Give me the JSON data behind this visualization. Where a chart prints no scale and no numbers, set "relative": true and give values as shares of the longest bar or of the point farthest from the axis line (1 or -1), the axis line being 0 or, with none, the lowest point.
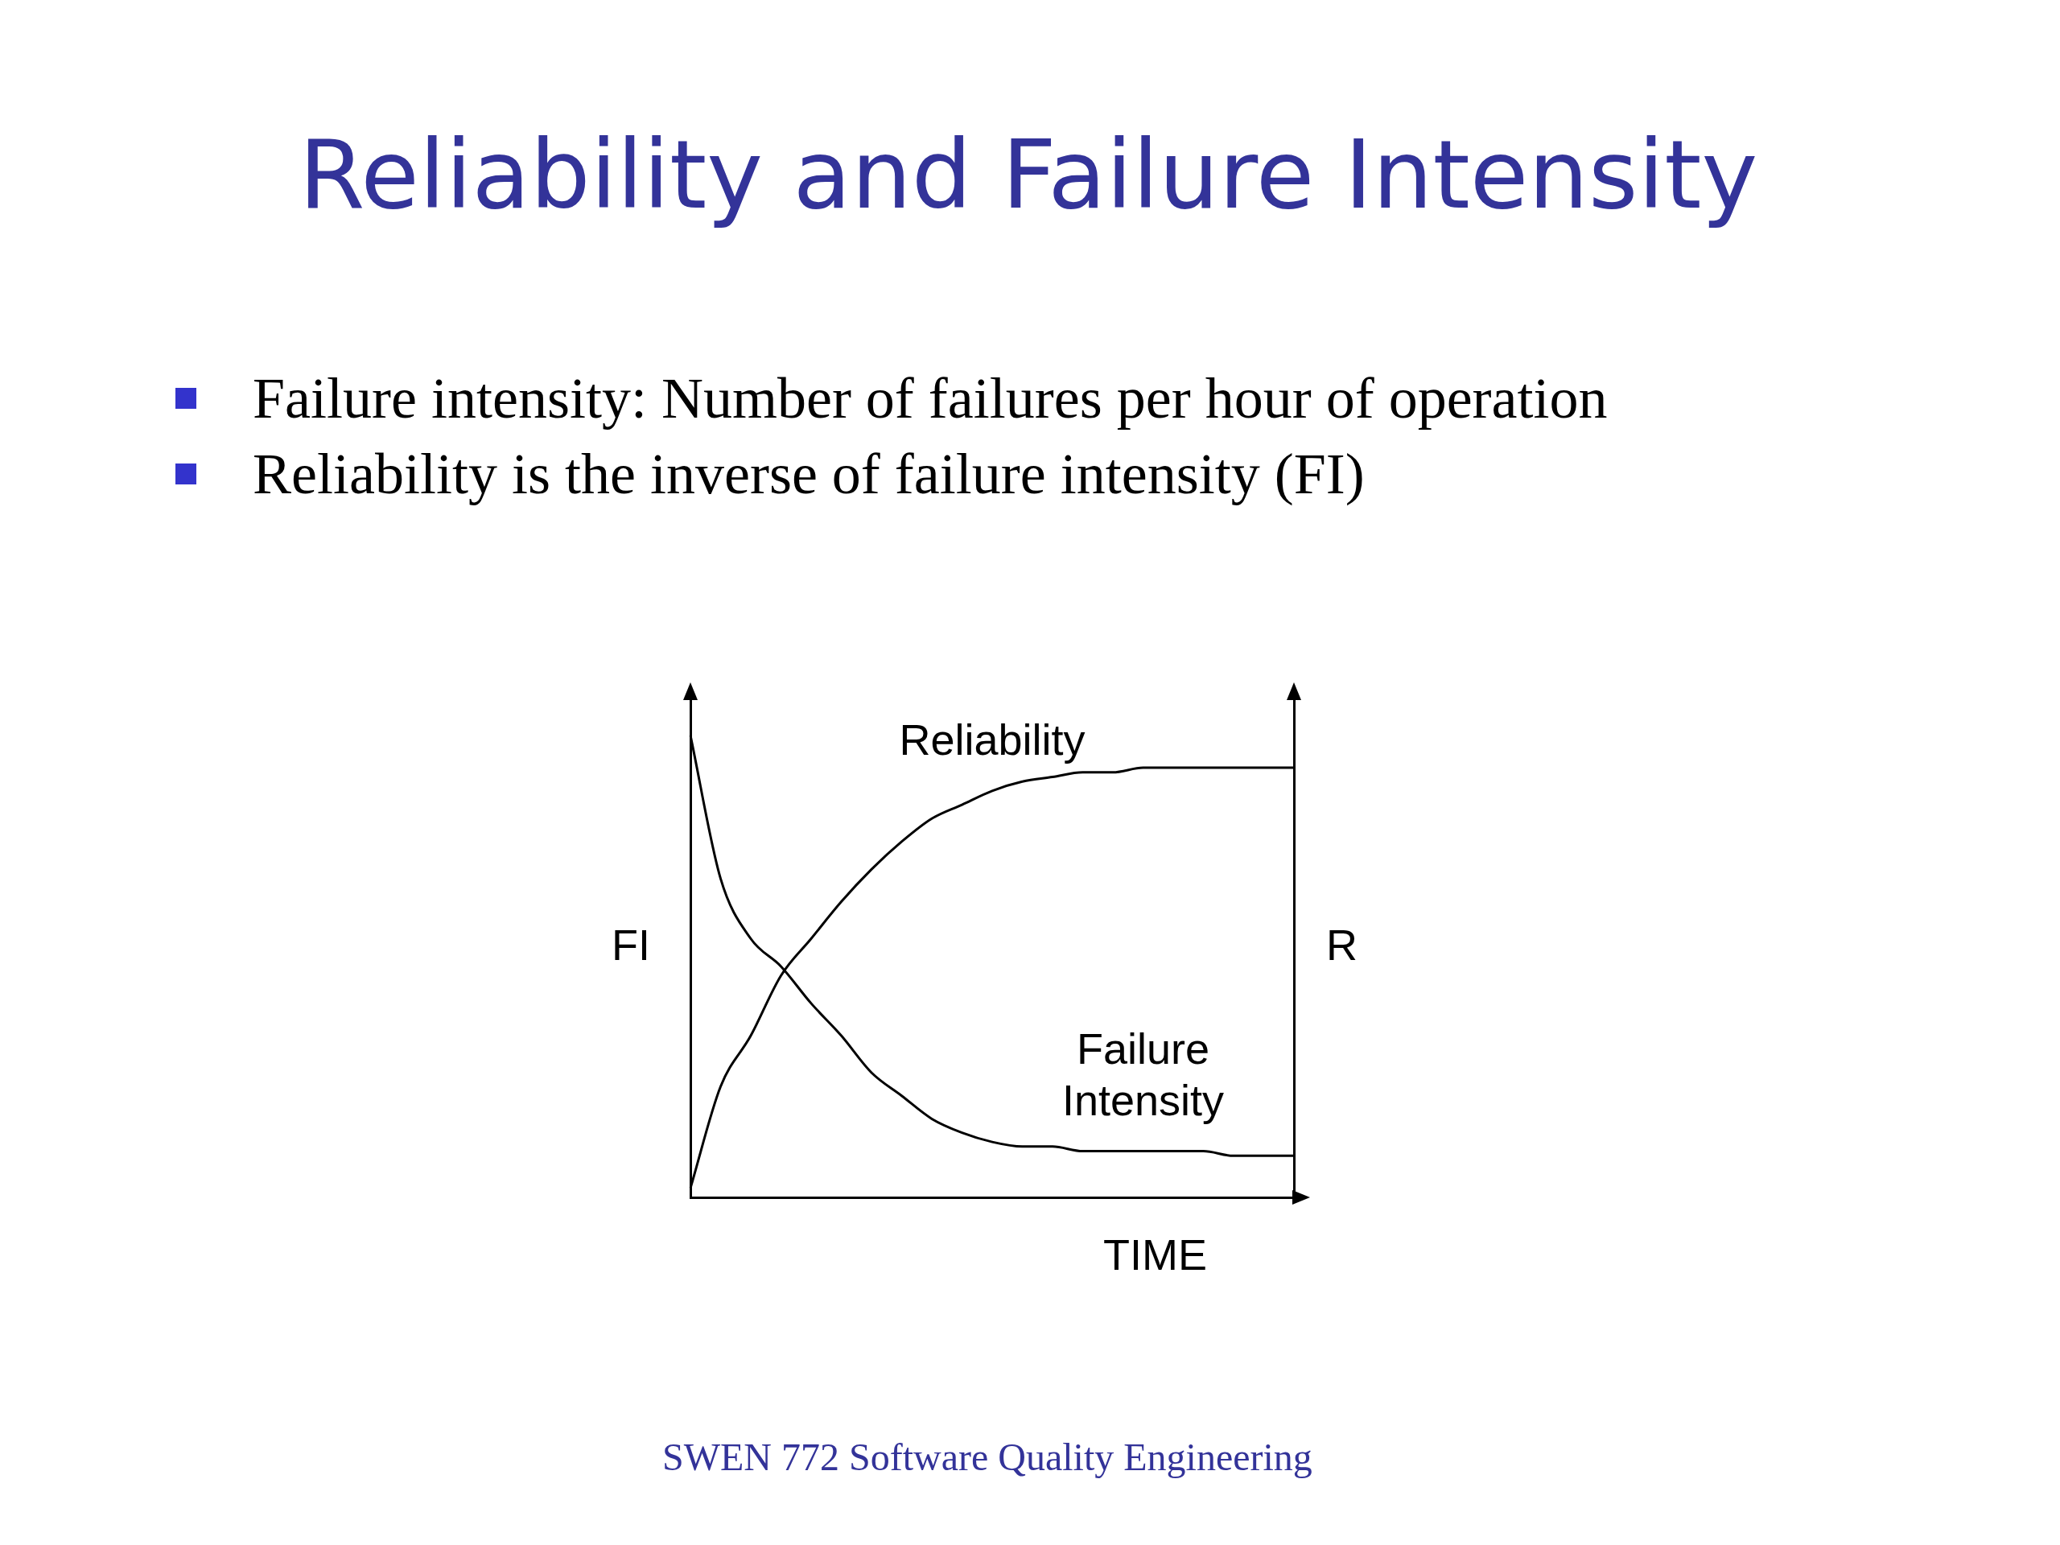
{
  "chart_data": {
    "type": "line",
    "title": "Reliability and Failure Intensity",
    "annotations": [
      "Failure intensity:  Number of failures per hour of operation",
      "Reliability is the inverse of failure intensity (FI)",
      "SWEN 772 Software Quality Engineering"
    ],
    "xlabel": "TIME",
    "ylabel": "FI",
    "y2label": "R",
    "relative": true,
    "legend": false,
    "grid": false,
    "marker": "none",
    "line_style": "solid",
    "categories": [
      null,
      null,
      null,
      null,
      null,
      null,
      null,
      null,
      null,
      null,
      null,
      null,
      null,
      null,
      null,
      null,
      null,
      null,
      null,
      null,
      null
    ],
    "series": [
      {
        "name": "Reliability",
        "color": "#000000",
        "values": [
          0.02,
          0.24,
          0.35,
          0.48,
          0.56,
          0.64,
          0.71,
          0.77,
          0.82,
          0.85,
          0.88,
          0.9,
          0.91,
          0.92,
          0.92,
          0.93,
          0.93,
          0.93,
          0.93,
          0.93,
          0.93
        ]
      },
      {
        "name": "Failure Intensity",
        "color": "#000000",
        "values": [
          1,
          0.69,
          0.56,
          0.5,
          0.42,
          0.35,
          0.27,
          0.22,
          0.17,
          0.14,
          0.12,
          0.11,
          0.11,
          0.1,
          0.1,
          0.1,
          0.1,
          0.1,
          0.09,
          0.09,
          0.09
        ]
      }
    ]
  }
}
